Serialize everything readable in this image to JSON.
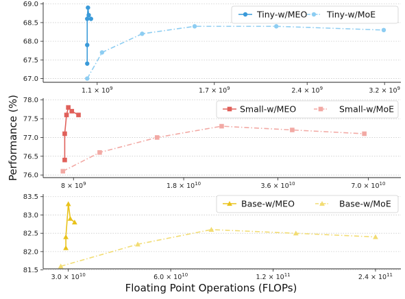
{
  "figure": {
    "xlabel": "Floating Point Operations (FLOPs)",
    "ylabel": "Performance (%)"
  },
  "chart_data": [
    {
      "type": "line",
      "x_ticks": [
        {
          "value": 1100000000,
          "label": "1.1 × 10^9"
        },
        {
          "value": 1700000000,
          "label": "1.7 × 10^9"
        },
        {
          "value": 2400000000,
          "label": "2.4 × 10^9"
        },
        {
          "value": 3200000000,
          "label": "3.2 × 10^9"
        }
      ],
      "x_range": [
        900000000,
        3400000000
      ],
      "x_scale": "log",
      "y_range": [
        66.9,
        69.05
      ],
      "y_ticks": [
        67.0,
        67.5,
        68.0,
        68.5,
        69.0
      ],
      "y_tick_labels": [
        "67.0",
        "67.5",
        "68.0",
        "68.5",
        "69.0"
      ],
      "grid": "horizontal dotted",
      "legend_position": "top-right",
      "series": [
        {
          "name": "Tiny-w/MEO",
          "color": "#3a9ad9",
          "marker": "circle",
          "line_style": "solid",
          "points": [
            {
              "x": 1060000000,
              "y": 67.4
            },
            {
              "x": 1060000000,
              "y": 67.9
            },
            {
              "x": 1060000000,
              "y": 68.6
            },
            {
              "x": 1063000000,
              "y": 68.9
            },
            {
              "x": 1066000000,
              "y": 68.7
            },
            {
              "x": 1075000000,
              "y": 68.6
            }
          ]
        },
        {
          "name": "Tiny-w/MoE",
          "color": "#8dcdf2",
          "marker": "circle",
          "line_style": "dashdot",
          "points": [
            {
              "x": 1060000000,
              "y": 67.0
            },
            {
              "x": 1120000000,
              "y": 67.7
            },
            {
              "x": 1300000000,
              "y": 68.2
            },
            {
              "x": 1580000000,
              "y": 68.4
            },
            {
              "x": 2140000000,
              "y": 68.4
            },
            {
              "x": 3190000000,
              "y": 68.3
            }
          ]
        }
      ]
    },
    {
      "type": "line",
      "x_ticks": [
        {
          "value": 8000000000,
          "label": "8 × 10^9"
        },
        {
          "value": 18000000000,
          "label": "1.8 × 10^10"
        },
        {
          "value": 36000000000,
          "label": "3.6 × 10^10"
        },
        {
          "value": 70000000000,
          "label": "7.0 × 10^10"
        }
      ],
      "x_range": [
        6400000000,
        89000000000
      ],
      "x_scale": "log",
      "y_range": [
        75.93,
        78.05
      ],
      "y_ticks": [
        76.0,
        76.5,
        77.0,
        77.5,
        78.0
      ],
      "y_tick_labels": [
        "76.0",
        "76.5",
        "77.0",
        "77.5",
        "78.0"
      ],
      "grid": "horizontal dotted",
      "legend_position": "top-right",
      "series": [
        {
          "name": "Small-w/MEO",
          "color": "#e0605a",
          "marker": "square",
          "line_style": "solid",
          "points": [
            {
              "x": 7500000000,
              "y": 76.4
            },
            {
              "x": 7500000000,
              "y": 77.1
            },
            {
              "x": 7600000000,
              "y": 77.6
            },
            {
              "x": 7700000000,
              "y": 77.8
            },
            {
              "x": 7900000000,
              "y": 77.7
            },
            {
              "x": 8300000000,
              "y": 77.6
            }
          ]
        },
        {
          "name": "Small-w/MoE",
          "color": "#f2a9a4",
          "marker": "square",
          "line_style": "dashdot",
          "points": [
            {
              "x": 7400000000,
              "y": 76.1
            },
            {
              "x": 9700000000,
              "y": 76.6
            },
            {
              "x": 14800000000,
              "y": 77.0
            },
            {
              "x": 23800000000,
              "y": 77.3
            },
            {
              "x": 40000000000,
              "y": 77.2
            },
            {
              "x": 68000000000,
              "y": 77.1
            }
          ]
        }
      ]
    },
    {
      "type": "line",
      "x_ticks": [
        {
          "value": 30000000000,
          "label": "3.0 × 10^10"
        },
        {
          "value": 60000000000,
          "label": "6.0 × 10^10"
        },
        {
          "value": 120000000000,
          "label": "1.2 × 10^11"
        },
        {
          "value": 240000000000,
          "label": "2.4 × 10^11"
        }
      ],
      "x_range": [
        25300000000,
        285000000000
      ],
      "x_scale": "log",
      "y_range": [
        81.53,
        83.57
      ],
      "y_ticks": [
        81.5,
        82.0,
        82.5,
        83.0,
        83.5
      ],
      "y_tick_labels": [
        "81.5",
        "82.0",
        "82.5",
        "83.0",
        "83.5"
      ],
      "grid": "horizontal dotted",
      "legend_position": "top-right",
      "series": [
        {
          "name": "Base-w/MEO",
          "color": "#e9c21b",
          "marker": "triangle",
          "line_style": "solid",
          "points": [
            {
              "x": 29500000000,
              "y": 82.1
            },
            {
              "x": 29500000000,
              "y": 82.4
            },
            {
              "x": 30000000000,
              "y": 83.3
            },
            {
              "x": 30400000000,
              "y": 82.9
            },
            {
              "x": 31300000000,
              "y": 82.8
            }
          ]
        },
        {
          "name": "Base-w/MoE",
          "color": "#f2dc72",
          "marker": "triangle",
          "line_style": "dashdot",
          "points": [
            {
              "x": 28500000000,
              "y": 81.6
            },
            {
              "x": 48000000000,
              "y": 82.2
            },
            {
              "x": 79000000000,
              "y": 82.6
            },
            {
              "x": 140000000000,
              "y": 82.5
            },
            {
              "x": 240000000000,
              "y": 82.4
            }
          ]
        }
      ]
    }
  ]
}
